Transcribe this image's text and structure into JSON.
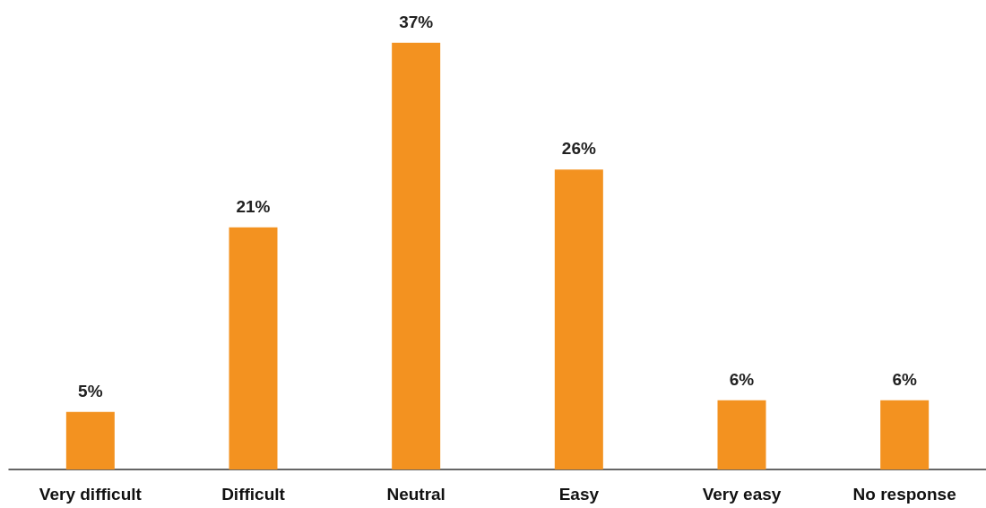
{
  "chart_data": {
    "type": "bar",
    "categories": [
      "Very difficult",
      "Difficult",
      "Neutral",
      "Easy",
      "Very easy",
      "No response"
    ],
    "values": [
      5,
      21,
      37,
      26,
      6,
      6
    ],
    "value_labels": [
      "5%",
      "21%",
      "37%",
      "26%",
      "6%",
      "6%"
    ],
    "color": "#f39220"
  }
}
